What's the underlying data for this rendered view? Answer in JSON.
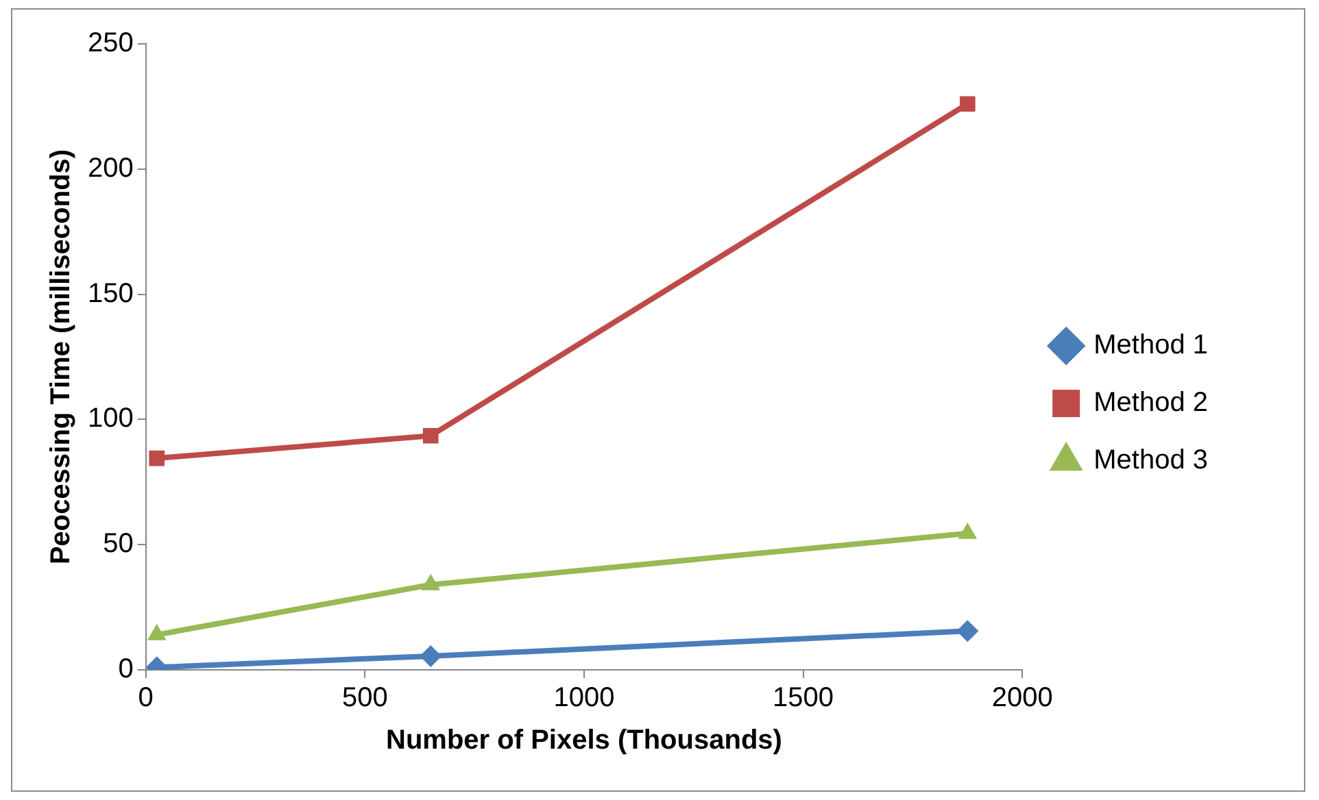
{
  "chart_data": {
    "type": "line",
    "xlabel": "Number of Pixels (Thousands)",
    "ylabel": "Peocessing Time (milliseconds)",
    "x": [
      25,
      650,
      1875
    ],
    "series": [
      {
        "name": "Method 1",
        "color": "#4a7ebb",
        "marker": "diamond",
        "values": [
          1,
          5.5,
          15.5
        ]
      },
      {
        "name": "Method 2",
        "color": "#be4b48",
        "marker": "square",
        "values": [
          84.5,
          93.5,
          226
        ]
      },
      {
        "name": "Method 3",
        "color": "#98b954",
        "marker": "triangle",
        "values": [
          14,
          34,
          54.5
        ]
      }
    ],
    "xlim": [
      0,
      2000
    ],
    "xticks": [
      0,
      500,
      1000,
      1500,
      2000
    ],
    "ylim": [
      0,
      250
    ],
    "yticks": [
      0,
      50,
      100,
      150,
      200,
      250
    ],
    "grid": false,
    "legend": "right",
    "line_style": "solid"
  }
}
